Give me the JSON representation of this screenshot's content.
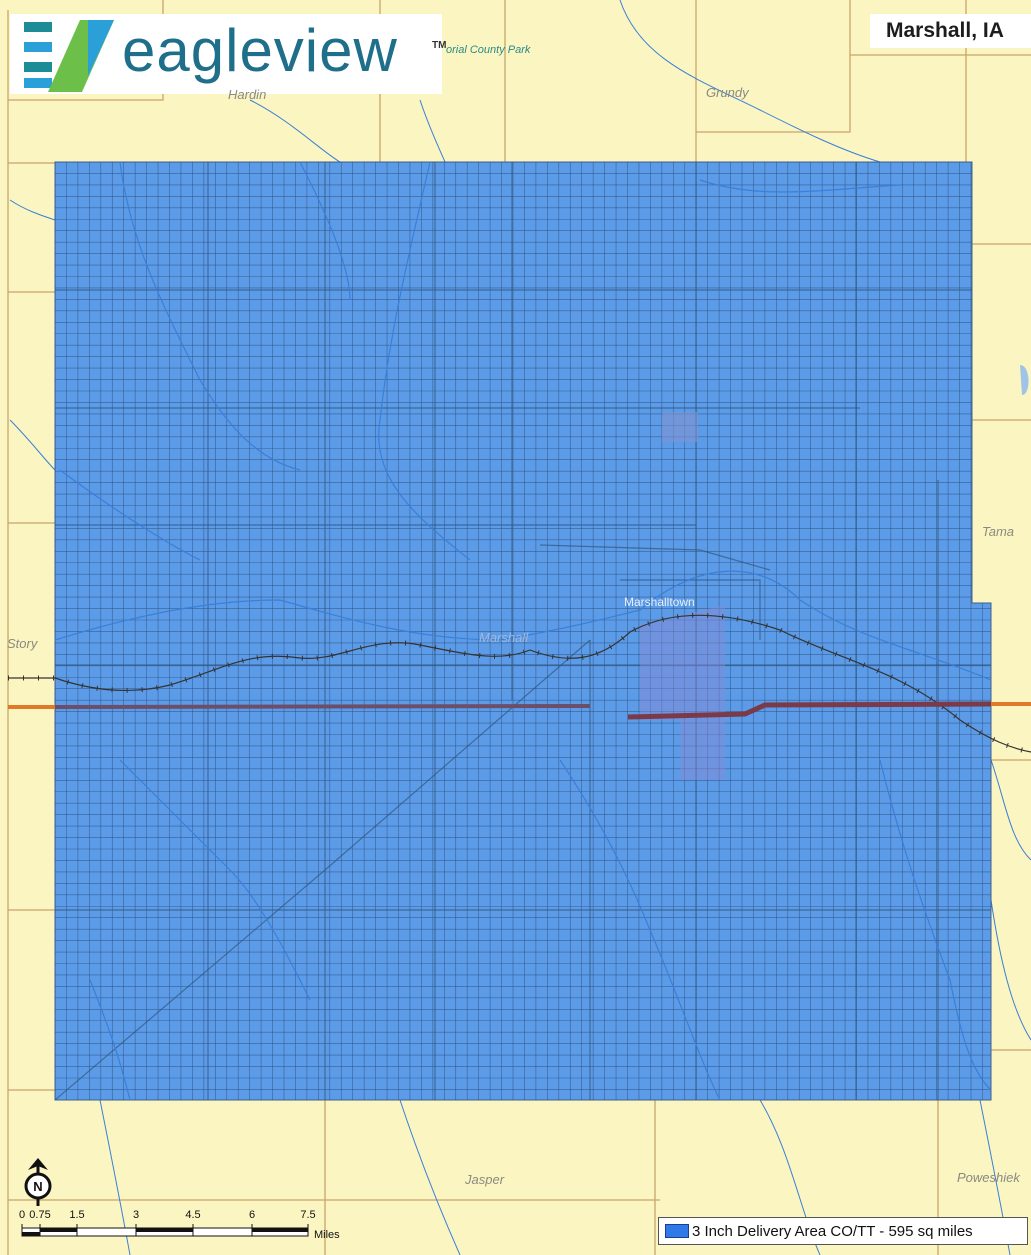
{
  "title": "Marshall, IA",
  "logo": {
    "wordmark": "eagleview",
    "trademark": "TM",
    "colors": [
      "#1e8c96",
      "#2b9fd8",
      "#6cc04a",
      "#1f6f8b"
    ]
  },
  "places": {
    "park": "orial County Park",
    "hardin": "Hardin",
    "grundy": "Grundy",
    "tama": "Tama",
    "story": "Story",
    "marshall": "Marshall",
    "marshalltown": "Marshalltown",
    "jasper": "Jasper",
    "poweshiek": "Poweshiek"
  },
  "legend": {
    "label": "3 Inch Delivery Area CO/TT - 595 sq miles",
    "color": "#2f79e8"
  },
  "scale": {
    "ticks": [
      "0",
      "0.75",
      "1.5",
      "3",
      "4.5",
      "6",
      "7.5"
    ],
    "units": "Miles"
  },
  "north_arrow": {
    "letter": "N"
  },
  "colors": {
    "land": "#fbf5c2",
    "delivery_area": "#5c9be8",
    "grid_line": "#2c4d7a",
    "water": "#3a7fd8",
    "county_border": "#c9a56a",
    "highway": "#e07a2a"
  }
}
